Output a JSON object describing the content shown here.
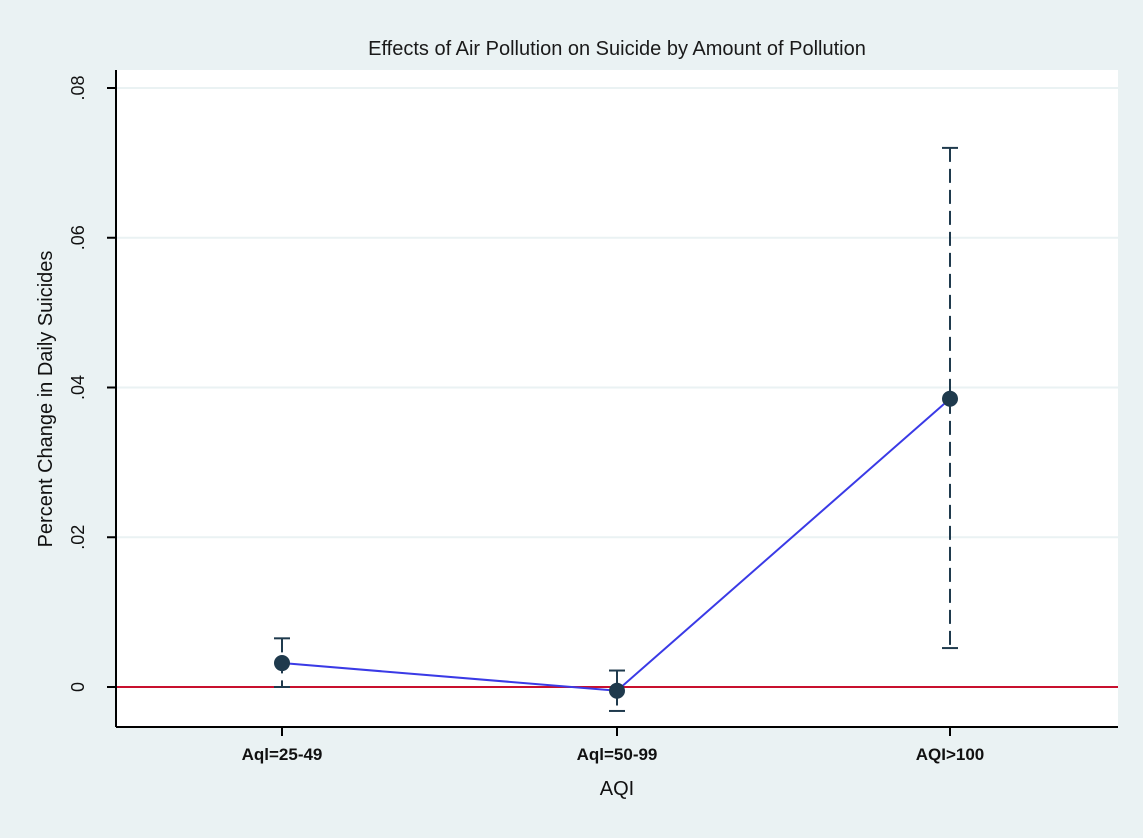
{
  "chart_data": {
    "type": "line",
    "title": "Effects of Air Pollution on Suicide by Amount of Pollution",
    "xlabel": "AQI",
    "ylabel": "Percent Change in Daily Suicides",
    "categories": [
      "Aql=25-49",
      "Aql=50-99",
      "AQI>100"
    ],
    "series": [
      {
        "values": [
          0.0032,
          -0.0005,
          0.0385
        ],
        "ci_lower": [
          0.0,
          -0.0032,
          0.0052
        ],
        "ci_upper": [
          0.0065,
          0.0022,
          0.072
        ],
        "color": "#3a3ae6",
        "marker_color": "#1f3a4d"
      }
    ],
    "ylim": [
      -0.0052,
      0.082
    ],
    "yticks": [
      0,
      0.02,
      0.04,
      0.06,
      0.08
    ],
    "ytick_labels": [
      "0",
      ".02",
      ".04",
      ".06",
      ".08"
    ],
    "reference_line": {
      "y": 0,
      "color": "#c8102e"
    },
    "grid": true,
    "colors": {
      "background": "#eaf2f3",
      "plot_background": "#ffffff",
      "grid": "#eaf2f3",
      "errorbar": "#1f3a4d"
    }
  }
}
